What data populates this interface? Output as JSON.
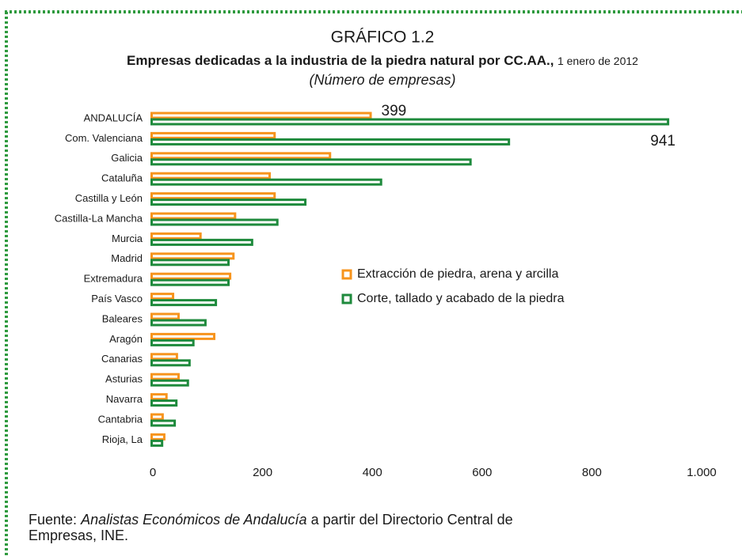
{
  "chart_data": {
    "type": "bar",
    "orientation": "horizontal",
    "title": "GRÁFICO 1.2",
    "subtitle": "Empresas dedicadas a la industria de la piedra natural por CC.AA.,",
    "subtitle_date": "1 enero de 2012",
    "units": "(Número de empresas)",
    "categories": [
      "ANDALUCÍA",
      "Com. Valenciana",
      "Galicia",
      "Cataluña",
      "Castilla y León",
      "Castilla-La Mancha",
      "Murcia",
      "Madrid",
      "Extremadura",
      "País Vasco",
      "Baleares",
      "Aragón",
      "Canarias",
      "Asturias",
      "Navarra",
      "Cantabria",
      "Rioja, La"
    ],
    "series": [
      {
        "name": "Extracción de piedra, arena y arcilla",
        "color": "#f7941d",
        "values": [
          399,
          224,
          325,
          215,
          224,
          152,
          89,
          149,
          143,
          39,
          49,
          114,
          46,
          49,
          27,
          20,
          23
        ]
      },
      {
        "name": "Corte, tallado y acabado de la piedra",
        "color": "#1e8a3c",
        "values": [
          941,
          651,
          581,
          418,
          280,
          229,
          183,
          140,
          140,
          117,
          98,
          76,
          69,
          66,
          45,
          42,
          19
        ]
      }
    ],
    "xlim": [
      0,
      1000
    ],
    "xticks": [
      0,
      200,
      400,
      600,
      800,
      {
        "value": 1000,
        "label": "1.000"
      }
    ],
    "source": {
      "prefix": "Fuente:",
      "italic": "Analistas Económicos de Andalucía",
      "rest": "a partir del Directorio Central de",
      "line2": "Empresas, INE."
    }
  }
}
